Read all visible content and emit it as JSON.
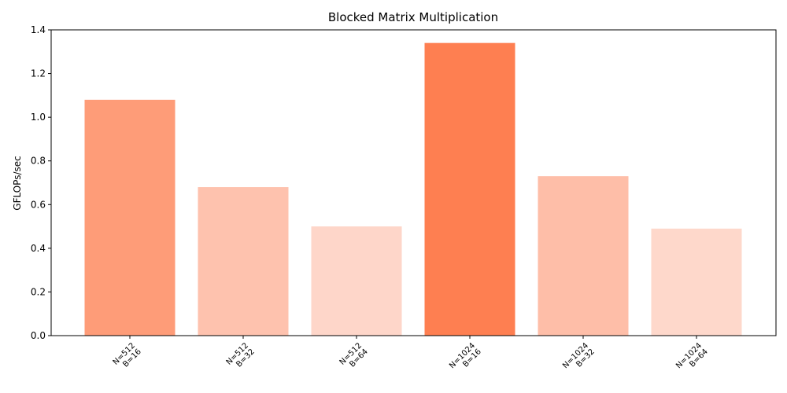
{
  "chart_data": {
    "type": "bar",
    "title": "Blocked Matrix Multiplication",
    "xlabel": "",
    "ylabel": "GFLOPs/sec",
    "ylim": [
      0,
      1.4
    ],
    "yticks": [
      "0.0",
      "0.2",
      "0.4",
      "0.6",
      "0.8",
      "1.0",
      "1.2",
      "1.4"
    ],
    "categories": [
      [
        "N=512",
        "B=16"
      ],
      [
        "N=512",
        "B=32"
      ],
      [
        "N=512",
        "B=64"
      ],
      [
        "N=1024",
        "B=16"
      ],
      [
        "N=1024",
        "B=32"
      ],
      [
        "N=1024",
        "B=64"
      ]
    ],
    "values": [
      1.08,
      0.68,
      0.5,
      1.34,
      0.73,
      0.49
    ],
    "colors": [
      "#fe9c78",
      "#fec2ae",
      "#fed6c9",
      "#fe7f51",
      "#febea8",
      "#fed8cb"
    ],
    "grid": false,
    "legend": "none"
  }
}
